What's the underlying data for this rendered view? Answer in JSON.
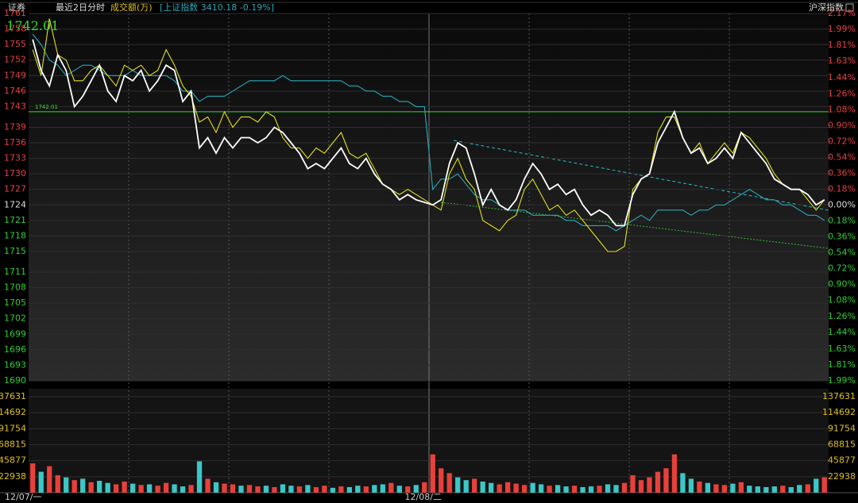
{
  "header": {
    "stock": "证券",
    "period": "最近2日分时",
    "volume_label": "成交额(万)",
    "index_info": "[上证指数 3410.18 -0.19%]",
    "index_button": "沪深指数"
  },
  "chart_data": [
    {
      "type": "line",
      "categories": [
        "12/07/一",
        null,
        null,
        null,
        null,
        null,
        null,
        null,
        null,
        null,
        null,
        null,
        null,
        null,
        null,
        null,
        null,
        null,
        null,
        null,
        null,
        null,
        null,
        null,
        null,
        null,
        null,
        null,
        null,
        null,
        null,
        null,
        null,
        null,
        null,
        null,
        null,
        null,
        null,
        null,
        null,
        null,
        null,
        null,
        null,
        null,
        null,
        null,
        "12/08/二",
        null,
        null,
        null,
        null,
        null,
        null,
        null,
        null,
        null,
        null,
        null,
        null,
        null,
        null,
        null,
        null,
        null,
        null,
        null,
        null,
        null,
        null,
        null,
        null,
        null,
        null,
        null,
        null,
        null,
        null,
        null,
        null,
        null,
        null,
        null,
        null,
        null,
        null,
        null,
        null,
        null,
        null,
        null,
        null,
        null,
        null,
        null
      ],
      "series": [
        {
          "color": "#ffffff",
          "values": [
            1756,
            1750,
            1747,
            1753,
            1750,
            1743,
            1745,
            1748,
            1751,
            1746,
            1744,
            1749,
            1748,
            1750,
            1746,
            1748,
            1751,
            1750,
            1744,
            1746,
            1735,
            1737,
            1734,
            1737,
            1735,
            1737,
            1737,
            1736,
            1737,
            1739,
            1738,
            1736,
            1734,
            1731,
            1732,
            1731,
            1733,
            1735,
            1732,
            1731,
            1733,
            1730,
            1728,
            1727,
            1725,
            1726,
            1725,
            1724.5,
            1724,
            1725,
            1732,
            1736,
            1735,
            1730,
            1724,
            1727,
            1724,
            1723,
            1725,
            1729,
            1732,
            1730,
            1727,
            1728,
            1726,
            1727,
            1724,
            1722,
            1723,
            1722,
            1720,
            1720,
            1726,
            1729,
            1730,
            1736,
            1739,
            1742.01,
            1737,
            1734,
            1735,
            1732,
            1733,
            1735,
            1733,
            1738,
            1736,
            1734,
            1732,
            1729,
            1728,
            1727,
            1727,
            1726,
            1724,
            1725
          ]
        },
        {
          "color": "#e0e020",
          "values": [
            1754,
            1749,
            1760,
            1753,
            1752,
            1748,
            1748,
            1750,
            1751,
            1749,
            1747,
            1751,
            1750,
            1751,
            1749,
            1750,
            1754,
            1751,
            1747,
            1745,
            1740,
            1741,
            1738,
            1742,
            1739,
            1741,
            1741,
            1740,
            1742,
            1741,
            1737,
            1735,
            1735,
            1733,
            1735,
            1734,
            1736,
            1738,
            1734,
            1733,
            1734,
            1731,
            1728,
            1727,
            1726,
            1727,
            1726,
            1725,
            1724,
            1723,
            1730,
            1733,
            1729,
            1727,
            1721,
            1720,
            1719,
            1721,
            1722,
            1727,
            1729,
            1726,
            1723,
            1724,
            1722,
            1723,
            1721,
            1719,
            1717,
            1715,
            1715,
            1716,
            1727,
            1729,
            1730,
            1738,
            1741,
            1741,
            1737,
            1734,
            1736,
            1732,
            1734,
            1736,
            1734,
            1738,
            1737,
            1735,
            1733,
            1730,
            1728,
            1727,
            1727,
            1725,
            1723,
            1725
          ]
        },
        {
          "color": "#2aa8b8",
          "values": [
            1757,
            1755,
            1752,
            1751,
            1749,
            1750,
            1751,
            1751,
            1750,
            1749,
            1749,
            1749,
            1750,
            1749,
            1749,
            1749,
            1749,
            1748,
            1746,
            1746,
            1744,
            1745,
            1745,
            1745,
            1746,
            1747,
            1748,
            1748,
            1748,
            1748,
            1749,
            1748,
            1748,
            1748,
            1748,
            1748,
            1748,
            1748,
            1747,
            1747,
            1746,
            1746,
            1745,
            1745,
            1744,
            1744,
            1743,
            1743,
            1727,
            1729,
            1729,
            1730,
            1728,
            1726,
            1725,
            1725,
            1724,
            1723,
            1723,
            1723,
            1722,
            1722,
            1722,
            1722,
            1721,
            1721,
            1720,
            1720,
            1720,
            1720,
            1719,
            1720,
            1721,
            1722,
            1721,
            1723,
            1723,
            1723,
            1723,
            1722,
            1723,
            1723,
            1724,
            1724,
            1725,
            1726,
            1727,
            1726,
            1725,
            1725,
            1724,
            1724,
            1723,
            1722,
            1722,
            1721
          ]
        }
      ],
      "ylim": [
        1690,
        1761
      ],
      "yticks": [
        1761,
        1758,
        1755,
        1752,
        1749,
        1746,
        1743,
        1739,
        1736,
        1733,
        1730,
        1727,
        1724,
        1721,
        1718,
        1715,
        1711,
        1708,
        1705,
        1702,
        1699,
        1696,
        1693,
        1690
      ],
      "y2lim": [
        -1.99,
        2.17
      ],
      "y2ticks": [
        {
          "value": 2.17,
          "label": "2.17%"
        },
        {
          "value": 1.99,
          "label": "1.99%"
        },
        {
          "value": 1.81,
          "label": "1.81%"
        },
        {
          "value": 1.63,
          "label": "1.63%"
        },
        {
          "value": 1.44,
          "label": "1.44%"
        },
        {
          "value": 1.26,
          "label": "1.26%"
        },
        {
          "value": 1.08,
          "label": "1.08%"
        },
        {
          "value": 0.9,
          "label": "0.90%"
        },
        {
          "value": 0.72,
          "label": "0.72%"
        },
        {
          "value": 0.54,
          "label": "0.54%"
        },
        {
          "value": 0.36,
          "label": "0.36%"
        },
        {
          "value": 0.18,
          "label": "0.18%"
        },
        {
          "value": 0,
          "label": "0.00%"
        },
        {
          "value": -0.18,
          "label": "0.18%"
        },
        {
          "value": -0.36,
          "label": "0.36%"
        },
        {
          "value": -0.54,
          "label": "0.54%"
        },
        {
          "value": -0.72,
          "label": "0.72%"
        },
        {
          "value": -0.9,
          "label": "0.90%"
        },
        {
          "value": -1.08,
          "label": "1.08%"
        },
        {
          "value": -1.26,
          "label": "1.26%"
        },
        {
          "value": -1.44,
          "label": "1.44%"
        },
        {
          "value": -1.63,
          "label": "1.63%"
        },
        {
          "value": -1.81,
          "label": "1.81%"
        },
        {
          "value": -1.99,
          "label": "1.99%"
        }
      ],
      "annotation": {
        "label": "1742.01",
        "value": 1742.01,
        "color": "#33dd33"
      },
      "grid": true
    },
    {
      "type": "bar",
      "values": [
        42000,
        30000,
        38000,
        25000,
        22000,
        18000,
        20000,
        15000,
        17000,
        14000,
        12000,
        16000,
        13000,
        11000,
        12000,
        10000,
        14000,
        12000,
        9000,
        11000,
        45000,
        20000,
        15000,
        13000,
        12000,
        10000,
        11000,
        9000,
        10000,
        8000,
        12000,
        10000,
        9000,
        11000,
        8000,
        10000,
        7000,
        9000,
        8000,
        10000,
        9000,
        11000,
        12000,
        14000,
        10000,
        9000,
        11000,
        15000,
        55000,
        35000,
        28000,
        22000,
        18000,
        20000,
        16000,
        14000,
        12000,
        15000,
        13000,
        11000,
        14000,
        12000,
        10000,
        11000,
        9000,
        10000,
        8000,
        9000,
        10000,
        12000,
        11000,
        14000,
        25000,
        18000,
        22000,
        30000,
        35000,
        55000,
        28000,
        20000,
        16000,
        14000,
        12000,
        11000,
        13000,
        15000,
        10000,
        9000,
        8000,
        9000,
        10000,
        8000,
        11000,
        12000,
        20000,
        22000
      ],
      "colors": [
        "#e8403a",
        "#3cc6c6",
        "#e8403a",
        "#e8403a",
        "#3cc6c6",
        "#e8403a",
        "#3cc6c6",
        "#e8403a",
        "#3cc6c6",
        "#3cc6c6",
        "#e8403a",
        "#e8403a",
        "#3cc6c6",
        "#e8403a",
        "#3cc6c6",
        "#e8403a",
        "#e8403a",
        "#3cc6c6",
        "#3cc6c6",
        "#e8403a",
        "#3cc6c6",
        "#e8403a",
        "#3cc6c6",
        "#e8403a",
        "#e8403a",
        "#3cc6c6",
        "#e8403a",
        "#e8403a",
        "#3cc6c6",
        "#e8403a",
        "#3cc6c6",
        "#3cc6c6",
        "#e8403a",
        "#3cc6c6",
        "#e8403a",
        "#e8403a",
        "#3cc6c6",
        "#e8403a",
        "#3cc6c6",
        "#3cc6c6",
        "#e8403a",
        "#3cc6c6",
        "#3cc6c6",
        "#e8403a",
        "#3cc6c6",
        "#e8403a",
        "#3cc6c6",
        "#e8403a",
        "#e8403a",
        "#e8403a",
        "#e8403a",
        "#3cc6c6",
        "#3cc6c6",
        "#e8403a",
        "#3cc6c6",
        "#3cc6c6",
        "#e8403a",
        "#e8403a",
        "#e8403a",
        "#e8403a",
        "#3cc6c6",
        "#3cc6c6",
        "#e8403a",
        "#3cc6c6",
        "#3cc6c6",
        "#e8403a",
        "#3cc6c6",
        "#3cc6c6",
        "#e8403a",
        "#3cc6c6",
        "#3cc6c6",
        "#e8403a",
        "#e8403a",
        "#e8403a",
        "#e8403a",
        "#e8403a",
        "#e8403a",
        "#e8403a",
        "#3cc6c6",
        "#3cc6c6",
        "#e8403a",
        "#3cc6c6",
        "#e8403a",
        "#e8403a",
        "#3cc6c6",
        "#e8403a",
        "#3cc6c6",
        "#3cc6c6",
        "#3cc6c6",
        "#3cc6c6",
        "#e8403a",
        "#3cc6c6",
        "#3cc6c6",
        "#e8403a",
        "#3cc6c6",
        "#e8403a"
      ],
      "ylim": [
        0,
        137631
      ],
      "yticks": [
        137631,
        114692,
        91754,
        68815,
        45877,
        22938
      ],
      "tick_color": "#e0c020"
    }
  ]
}
